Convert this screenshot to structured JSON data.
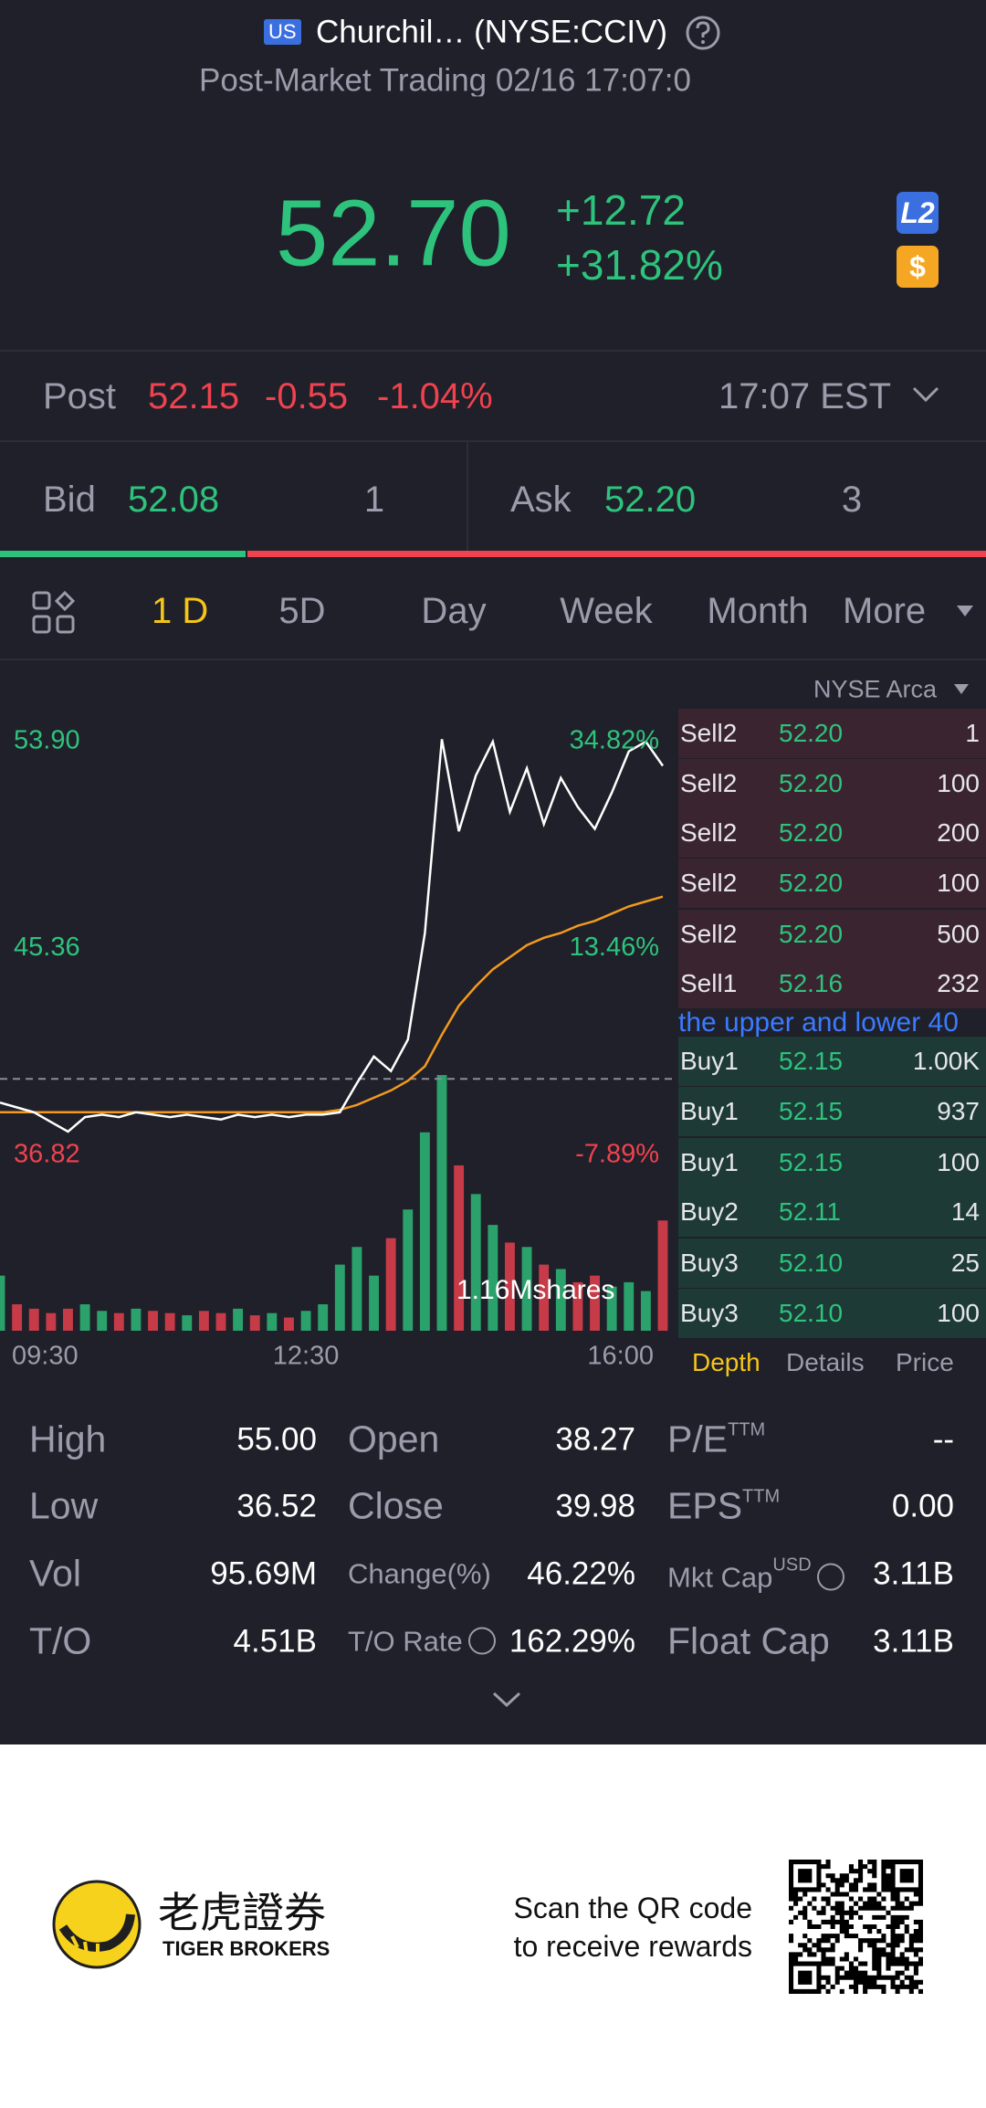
{
  "header": {
    "badge": "US",
    "title": "Churchil… (NYSE:CCIV)",
    "subtitle": "Post-Market Trading 02/16 17:07:0"
  },
  "quote": {
    "price": "52.70",
    "change": "+12.72",
    "change_pct": "+31.82%",
    "badges": [
      "L2",
      "$"
    ]
  },
  "post": {
    "label": "Post",
    "price": "52.15",
    "change": "-0.55",
    "change_pct": "-1.04%",
    "time": "17:07 EST"
  },
  "bid_ask": {
    "bid_label": "Bid",
    "bid": "52.08",
    "bid_size": "1",
    "ask_label": "Ask",
    "ask": "52.20",
    "ask_size": "3"
  },
  "tabs": [
    "1 D",
    "5D",
    "Day",
    "Week",
    "Month",
    "More"
  ],
  "exchange": "NYSE Arca",
  "chart_data": {
    "type": "line",
    "categories": [
      "09:30",
      null,
      null,
      null,
      null,
      null,
      null,
      null,
      null,
      null,
      null,
      null,
      null,
      null,
      null,
      null,
      null,
      null,
      "12:30",
      null,
      null,
      null,
      null,
      null,
      null,
      null,
      null,
      null,
      null,
      null,
      null,
      null,
      null,
      null,
      null,
      null,
      null,
      null,
      null,
      "16:00"
    ],
    "series": [
      {
        "color": "#ffffff",
        "values": [
          39.0,
          38.8,
          38.6,
          38.2,
          37.8,
          38.4,
          38.5,
          38.4,
          38.6,
          38.5,
          38.4,
          38.5,
          38.4,
          38.3,
          38.5,
          38.4,
          38.5,
          38.4,
          38.5,
          38.5,
          38.6,
          39.8,
          40.9,
          40.3,
          41.6,
          46.0,
          54.0,
          50.2,
          52.5,
          53.9,
          51.0,
          52.8,
          50.5,
          52.4,
          51.2,
          50.3,
          51.8,
          53.5,
          53.9,
          52.9
        ]
      },
      {
        "color": "#f39a1e",
        "values": [
          38.6,
          38.6,
          38.6,
          38.6,
          38.6,
          38.6,
          38.6,
          38.6,
          38.6,
          38.6,
          38.6,
          38.6,
          38.6,
          38.6,
          38.6,
          38.6,
          38.6,
          38.6,
          38.6,
          38.6,
          38.7,
          38.9,
          39.2,
          39.5,
          39.9,
          40.5,
          41.8,
          43.0,
          43.8,
          44.5,
          45.0,
          45.5,
          45.8,
          46.0,
          46.3,
          46.5,
          46.8,
          47.1,
          47.3,
          47.5
        ]
      }
    ],
    "ylim": [
      36.82,
      53.9
    ],
    "yticks": [
      {
        "value": 53.9,
        "label": "53.90"
      },
      45.36,
      36.82
    ],
    "y2lim": [
      -7.89,
      34.82
    ],
    "y2ticks": [
      {
        "value": 34.82,
        "label": "34.82%"
      },
      {
        "value": 13.46,
        "label": "13.46%"
      },
      {
        "value": -7.89,
        "label": "-7.89%"
      }
    ],
    "reference_line": 39.98,
    "colors": {
      "up": "#2ec37c",
      "down": "#f0424f"
    },
    "volume": {
      "label": "1.16Mshares",
      "ylim": [
        0,
        1.16
      ],
      "values": [
        0.25,
        0.12,
        0.1,
        0.08,
        0.1,
        0.12,
        0.09,
        0.08,
        0.1,
        0.09,
        0.08,
        0.07,
        0.09,
        0.08,
        0.1,
        0.07,
        0.08,
        0.06,
        0.09,
        0.12,
        0.3,
        0.38,
        0.25,
        0.42,
        0.55,
        0.9,
        1.16,
        0.75,
        0.62,
        0.48,
        0.4,
        0.38,
        0.3,
        0.28,
        0.22,
        0.25,
        0.2,
        0.22,
        0.18,
        0.5
      ]
    }
  },
  "order_book": {
    "rows": [
      [
        "Sell2",
        "52.20",
        "1"
      ],
      [
        "Sell2",
        "52.20",
        "100"
      ],
      [
        "Sell2",
        "52.20",
        "200"
      ],
      [
        "Sell2",
        "52.20",
        "100"
      ],
      [
        "Sell2",
        "52.20",
        "500"
      ],
      [
        "Sell1",
        "52.16",
        "232"
      ],
      [
        "Buy1",
        "52.15",
        "1.00K"
      ],
      [
        "Buy1",
        "52.15",
        "937"
      ],
      [
        "Buy1",
        "52.15",
        "100"
      ],
      [
        "Buy2",
        "52.11",
        "14"
      ],
      [
        "Buy3",
        "52.10",
        "25"
      ],
      [
        "Buy3",
        "52.10",
        "100"
      ]
    ],
    "notice": "the upper and lower 40",
    "tabs": [
      "Depth",
      "Details",
      "Price"
    ]
  },
  "stats": [
    {
      "label": "High",
      "value": "55.00"
    },
    {
      "label": "Open",
      "value": "38.27"
    },
    {
      "label": "P/E",
      "sup": "TTM",
      "value": "--"
    },
    {
      "label": "Low",
      "value": "36.52"
    },
    {
      "label": "Close",
      "value": "39.98"
    },
    {
      "label": "EPS",
      "sup": "TTM",
      "value": "0.00"
    },
    {
      "label": "Vol",
      "value": "95.69M"
    },
    {
      "label": "Change(%)",
      "value": "46.22%"
    },
    {
      "label": "Mkt Cap",
      "sup": "USD",
      "value": "3.11B"
    },
    {
      "label": "T/O",
      "value": "4.51B"
    },
    {
      "label": "T/O Rate",
      "value": "162.29%"
    },
    {
      "label": "Float Cap",
      "value": "3.11B"
    }
  ],
  "footer": {
    "brand_cn": "老虎證券",
    "brand_en": "TIGER BROKERS",
    "cta": [
      "Scan the QR code",
      "to receive rewards"
    ]
  }
}
